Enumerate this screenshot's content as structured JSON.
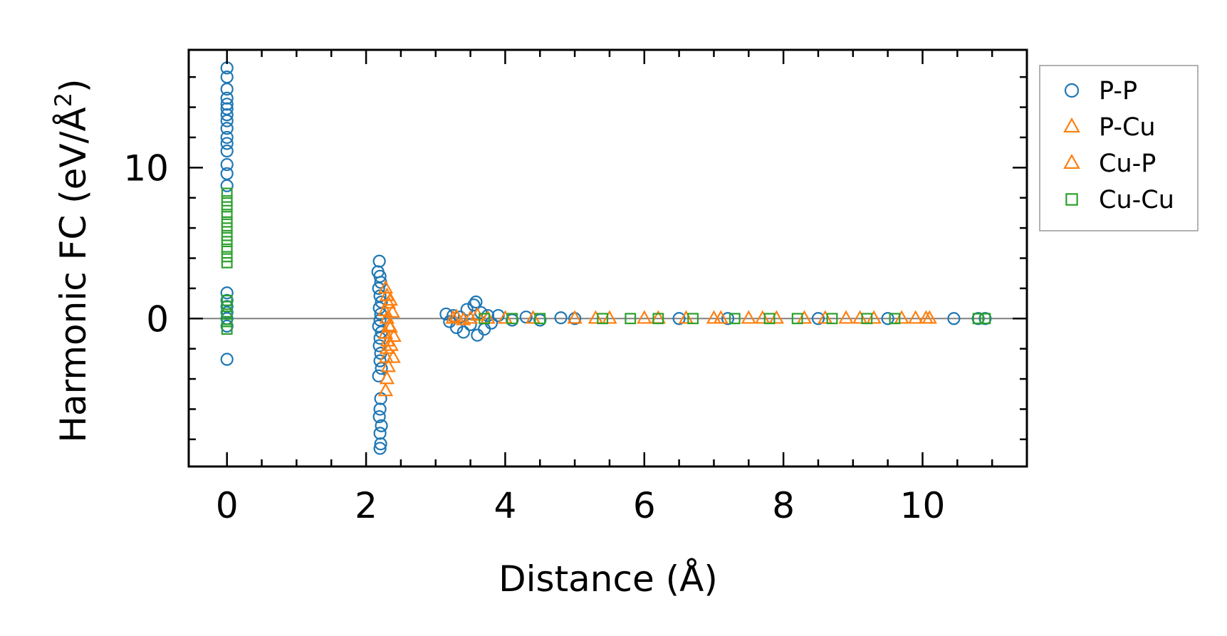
{
  "chart_data": {
    "type": "scatter",
    "xlabel": "Distance (Å)",
    "ylabel": "Harmonic FC (eV/Å²)",
    "ylabel_main": "Harmonic FC (eV/Å",
    "ylabel_sup": "2",
    "ylabel_end": ")",
    "xlim": [
      -0.55,
      11.5
    ],
    "ylim": [
      -9.8,
      17.8
    ],
    "xticks": [
      0,
      2,
      4,
      6,
      8,
      10
    ],
    "yticks": [
      0,
      10
    ],
    "x_tick_labels": [
      "0",
      "2",
      "4",
      "6",
      "8",
      "10"
    ],
    "y_tick_labels": [
      "0",
      "10"
    ],
    "zero_line": true,
    "grid": false,
    "legend_position": "outside-right-top",
    "series": [
      {
        "name": "P-P",
        "marker": "circle",
        "color": "#1f77b4",
        "points": [
          [
            0,
            16.6
          ],
          [
            0,
            16.0
          ],
          [
            0,
            15.2
          ],
          [
            0,
            14.6
          ],
          [
            0,
            14.2
          ],
          [
            0,
            13.9
          ],
          [
            0,
            13.5
          ],
          [
            0,
            13.1
          ],
          [
            0,
            12.6
          ],
          [
            0,
            12.0
          ],
          [
            0,
            11.6
          ],
          [
            0,
            11.1
          ],
          [
            0,
            10.2
          ],
          [
            0,
            9.6
          ],
          [
            0,
            8.8
          ],
          [
            0,
            1.7
          ],
          [
            0,
            1.2
          ],
          [
            0,
            0.8
          ],
          [
            0,
            0.4
          ],
          [
            0,
            0.0
          ],
          [
            0,
            -0.5
          ],
          [
            0,
            -2.7
          ],
          [
            2.19,
            3.8
          ],
          [
            2.17,
            3.1
          ],
          [
            2.2,
            2.8
          ],
          [
            2.21,
            2.4
          ],
          [
            2.18,
            2.0
          ],
          [
            2.2,
            1.5
          ],
          [
            2.22,
            1.1
          ],
          [
            2.19,
            0.7
          ],
          [
            2.21,
            0.3
          ],
          [
            2.2,
            -0.1
          ],
          [
            2.18,
            -0.5
          ],
          [
            2.22,
            -0.9
          ],
          [
            2.2,
            -1.3
          ],
          [
            2.19,
            -1.8
          ],
          [
            2.21,
            -2.3
          ],
          [
            2.2,
            -2.8
          ],
          [
            2.22,
            -3.3
          ],
          [
            2.18,
            -3.8
          ],
          [
            2.21,
            -5.3
          ],
          [
            2.2,
            -6.0
          ],
          [
            2.19,
            -6.5
          ],
          [
            2.22,
            -7.1
          ],
          [
            2.2,
            -7.6
          ],
          [
            2.21,
            -8.3
          ],
          [
            2.2,
            -8.6
          ],
          [
            3.15,
            0.3
          ],
          [
            3.2,
            -0.2
          ],
          [
            3.25,
            0.2
          ],
          [
            3.3,
            -0.6
          ],
          [
            3.35,
            0.1
          ],
          [
            3.4,
            -0.9
          ],
          [
            3.45,
            0.6
          ],
          [
            3.5,
            -0.4
          ],
          [
            3.55,
            0.9
          ],
          [
            3.58,
            1.1
          ],
          [
            3.6,
            -1.1
          ],
          [
            3.65,
            0.4
          ],
          [
            3.7,
            -0.7
          ],
          [
            3.75,
            0.2
          ],
          [
            3.8,
            -0.3
          ],
          [
            3.9,
            0.2
          ],
          [
            4.1,
            -0.1
          ],
          [
            4.3,
            0.1
          ],
          [
            4.5,
            -0.1
          ],
          [
            4.8,
            0.05
          ],
          [
            5.0,
            0.0
          ],
          [
            6.5,
            0.0
          ],
          [
            7.2,
            0.0
          ],
          [
            8.5,
            0.0
          ],
          [
            9.5,
            0.0
          ],
          [
            10.45,
            0.0
          ],
          [
            10.8,
            0.0
          ],
          [
            10.9,
            0.0
          ]
        ]
      },
      {
        "name": "P-Cu",
        "marker": "triangle",
        "color": "#ff7f0e",
        "points": [
          [
            2.28,
            2.0
          ],
          [
            2.3,
            1.5
          ],
          [
            2.32,
            1.0
          ],
          [
            2.27,
            0.5
          ],
          [
            2.3,
            0.0
          ],
          [
            2.33,
            -0.5
          ],
          [
            2.28,
            -1.0
          ],
          [
            2.31,
            -1.5
          ],
          [
            2.3,
            -2.0
          ],
          [
            2.29,
            -2.6
          ],
          [
            2.32,
            -3.2
          ],
          [
            2.3,
            -4.0
          ],
          [
            2.28,
            -4.8
          ],
          [
            3.25,
            0.0
          ],
          [
            3.4,
            -0.1
          ],
          [
            3.6,
            0.2
          ],
          [
            3.75,
            0.0
          ],
          [
            4.0,
            0.0
          ],
          [
            5.0,
            0.0
          ],
          [
            5.5,
            0.0
          ],
          [
            6.0,
            0.0
          ],
          [
            6.6,
            0.0
          ],
          [
            7.1,
            0.0
          ],
          [
            7.5,
            0.0
          ],
          [
            7.9,
            0.0
          ],
          [
            8.3,
            0.0
          ],
          [
            8.9,
            0.0
          ],
          [
            9.3,
            0.0
          ],
          [
            9.9,
            0.0
          ],
          [
            10.1,
            0.0
          ]
        ]
      },
      {
        "name": "Cu-P",
        "marker": "triangle",
        "color": "#ff7f0e",
        "points": [
          [
            2.35,
            1.2
          ],
          [
            2.38,
            0.4
          ],
          [
            2.35,
            -0.6
          ],
          [
            2.4,
            -1.2
          ],
          [
            2.36,
            -1.8
          ],
          [
            2.39,
            -2.6
          ],
          [
            3.3,
            0.1
          ],
          [
            3.5,
            0.0
          ],
          [
            4.4,
            0.0
          ],
          [
            5.3,
            0.0
          ],
          [
            6.2,
            0.0
          ],
          [
            7.0,
            0.0
          ],
          [
            7.7,
            0.0
          ],
          [
            8.6,
            0.0
          ],
          [
            9.1,
            0.0
          ],
          [
            9.7,
            0.0
          ],
          [
            10.05,
            0.0
          ]
        ]
      },
      {
        "name": "Cu-Cu",
        "marker": "square",
        "color": "#2ca02c",
        "points": [
          [
            0,
            8.3
          ],
          [
            0,
            7.8
          ],
          [
            0,
            7.4
          ],
          [
            0,
            6.9
          ],
          [
            0,
            6.4
          ],
          [
            0,
            6.0
          ],
          [
            0,
            5.5
          ],
          [
            0,
            5.1
          ],
          [
            0,
            4.6
          ],
          [
            0,
            4.1
          ],
          [
            0,
            3.7
          ],
          [
            0,
            1.2
          ],
          [
            0,
            0.8
          ],
          [
            0,
            0.3
          ],
          [
            0,
            -0.2
          ],
          [
            0,
            -0.7
          ],
          [
            3.7,
            0.0
          ],
          [
            4.1,
            0.0
          ],
          [
            4.5,
            0.0
          ],
          [
            5.4,
            0.0
          ],
          [
            5.8,
            0.0
          ],
          [
            6.2,
            0.0
          ],
          [
            6.7,
            0.0
          ],
          [
            7.3,
            0.0
          ],
          [
            7.8,
            0.0
          ],
          [
            8.2,
            0.0
          ],
          [
            8.7,
            0.0
          ],
          [
            9.2,
            0.0
          ],
          [
            9.6,
            0.0
          ],
          [
            10.8,
            0.0
          ],
          [
            10.9,
            0.0
          ]
        ]
      }
    ]
  }
}
